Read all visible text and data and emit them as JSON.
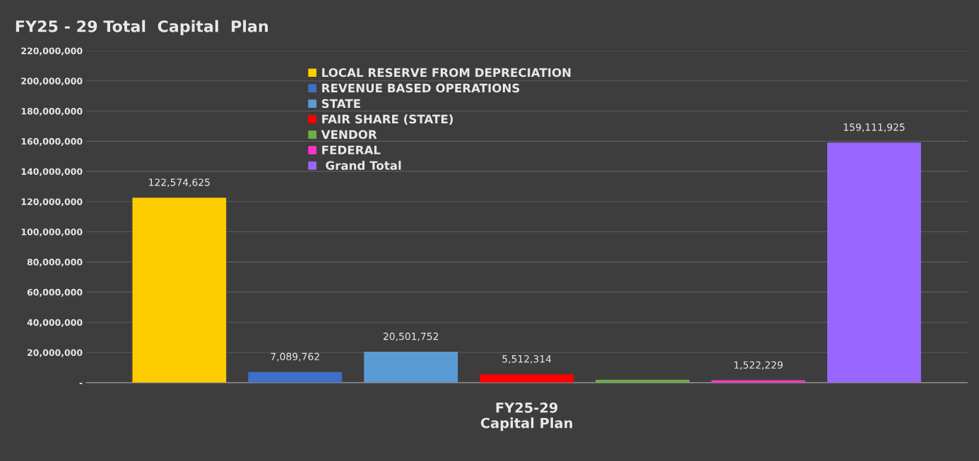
{
  "chart_data": {
    "type": "bar",
    "title": "FY25 - 29 Total  Capital  Plan",
    "categories": [
      "FY25-29\nCapital Plan"
    ],
    "series": [
      {
        "name": "LOCAL RESERVE FROM DEPRECIATION",
        "color": "#ffcc00",
        "values": [
          122574625
        ],
        "value_labels": [
          "122,574,625"
        ]
      },
      {
        "name": "REVENUE BASED OPERATIONS",
        "color": "#3f6fc6",
        "values": [
          7089762
        ],
        "value_labels": [
          "7,089,762"
        ]
      },
      {
        "name": "STATE",
        "color": "#5b9bd5",
        "values": [
          20501752
        ],
        "value_labels": [
          "20,501,752"
        ]
      },
      {
        "name": "FAIR SHARE (STATE)",
        "color": "#ff0000",
        "values": [
          5512314
        ],
        "value_labels": [
          "5,512,314"
        ]
      },
      {
        "name": "VENDOR",
        "color": "#70ad47",
        "values": [
          1900000
        ],
        "value_labels": [
          null
        ]
      },
      {
        "name": "FEDERAL",
        "color": "#ff33cc",
        "values": [
          1522229
        ],
        "value_labels": [
          "1,522,229"
        ]
      },
      {
        "name": " Grand Total",
        "color": "#9966ff",
        "values": [
          159111925
        ],
        "value_labels": [
          "159,111,925"
        ]
      }
    ],
    "ylim": [
      0,
      220000000
    ],
    "yticks": [
      {
        "value": 0,
        "label": "-"
      },
      {
        "value": 20000000,
        "label": "20,000,000"
      },
      {
        "value": 40000000,
        "label": "40,000,000"
      },
      {
        "value": 60000000,
        "label": "60,000,000"
      },
      {
        "value": 80000000,
        "label": "80,000,000"
      },
      {
        "value": 100000000,
        "label": "100,000,000"
      },
      {
        "value": 120000000,
        "label": "120,000,000"
      },
      {
        "value": 140000000,
        "label": "140,000,000"
      },
      {
        "value": 160000000,
        "label": "160,000,000"
      },
      {
        "value": 180000000,
        "label": "180,000,000"
      },
      {
        "value": 200000000,
        "label": "200,000,000"
      },
      {
        "value": 220000000,
        "label": "220,000,000"
      }
    ],
    "grid": "y",
    "legend": "top"
  }
}
